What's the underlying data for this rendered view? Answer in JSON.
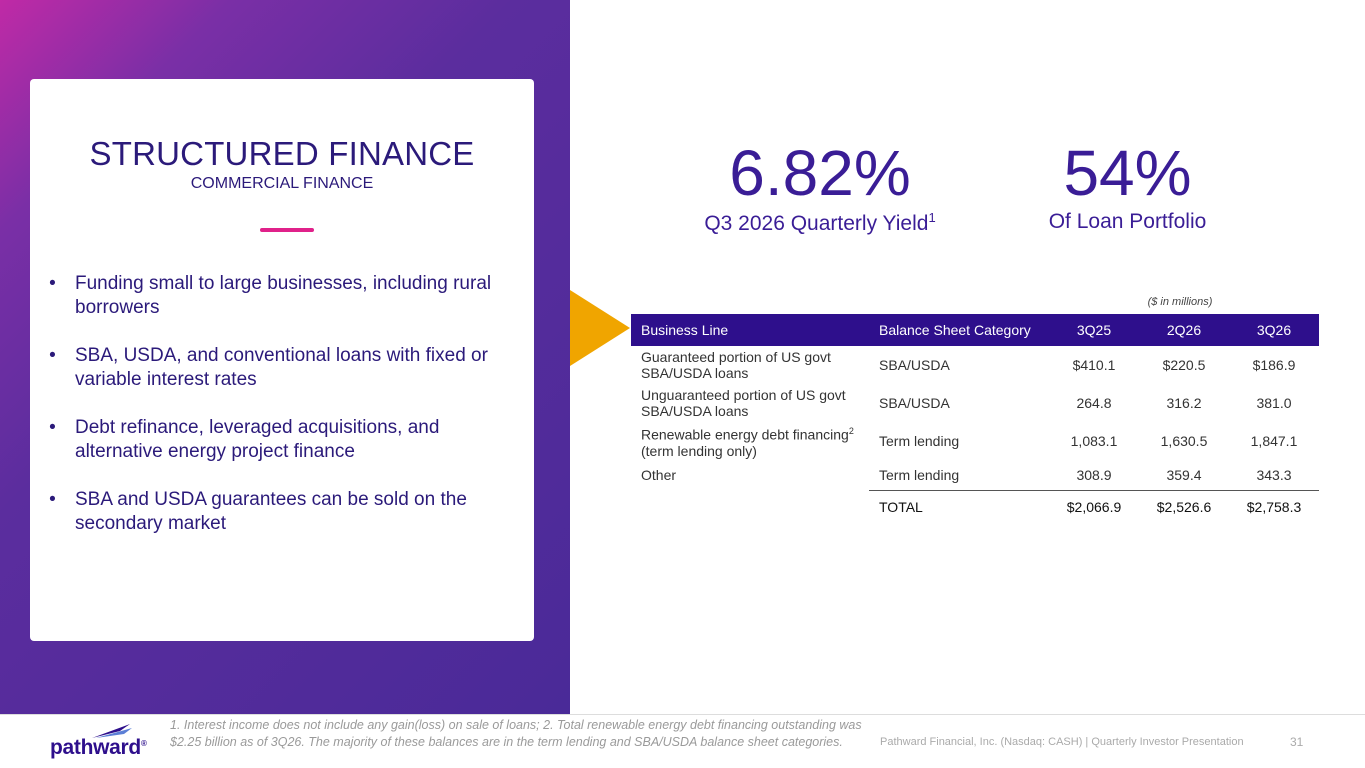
{
  "card": {
    "title": "STRUCTURED FINANCE",
    "subtitle": "COMMERCIAL FINANCE",
    "bullet_glyph": "•",
    "bullets": [
      "Funding small to large businesses, including rural borrowers",
      "SBA, USDA, and conventional loans with fixed or variable interest rates",
      "Debt refinance, leveraged acquisitions, and alternative energy project finance",
      "SBA and USDA guarantees can be sold on the secondary market"
    ]
  },
  "stats": {
    "yield_value": "6.82%",
    "yield_label": "Q3 2026 Quarterly Yield",
    "yield_sup": "1",
    "portfolio_value": "54%",
    "portfolio_label": "Of Loan Portfolio"
  },
  "table": {
    "units": "($ in millions)",
    "headers": [
      "Business Line",
      "Balance Sheet Category",
      "3Q25",
      "2Q26",
      "3Q26"
    ],
    "rows": [
      {
        "line": "Guaranteed portion of US govt SBA/USDA loans",
        "category": "SBA/USDA",
        "q3_25": "$410.1",
        "q2_26": "$220.5",
        "q3_26": "$186.9"
      },
      {
        "line": "Unguaranteed portion of US govt SBA/USDA loans",
        "category": "SBA/USDA",
        "q3_25": "264.8",
        "q2_26": "316.2",
        "q3_26": "381.0"
      },
      {
        "line": "Renewable energy debt financing",
        "line_sup": "2",
        "line_suffix": "(term lending only)",
        "category": "Term lending",
        "q3_25": "1,083.1",
        "q2_26": "1,630.5",
        "q3_26": "1,847.1"
      },
      {
        "line": "Other",
        "category": "Term lending",
        "q3_25": "308.9",
        "q2_26": "359.4",
        "q3_26": "343.3"
      }
    ],
    "total": {
      "label": "TOTAL",
      "q3_25": "$2,066.9",
      "q2_26": "$2,526.6",
      "q3_26": "$2,758.3"
    }
  },
  "footer": {
    "logo_text": "pathward",
    "logo_reg": "®",
    "footnote": "1. Interest income does not include any gain(loss) on sale of loans; 2. Total renewable energy debt financing outstanding was $2.25 billion as of 3Q26. The majority of these balances are in the term lending and SBA/USDA balance sheet categories.",
    "company": "Pathward Financial, Inc. (Nasdaq: CASH) | Quarterly Investor Presentation",
    "page": "31"
  },
  "colors": {
    "brand_purple": "#2e0f8c",
    "accent_pink": "#e0218a",
    "arrow_gold": "#f0a500"
  }
}
